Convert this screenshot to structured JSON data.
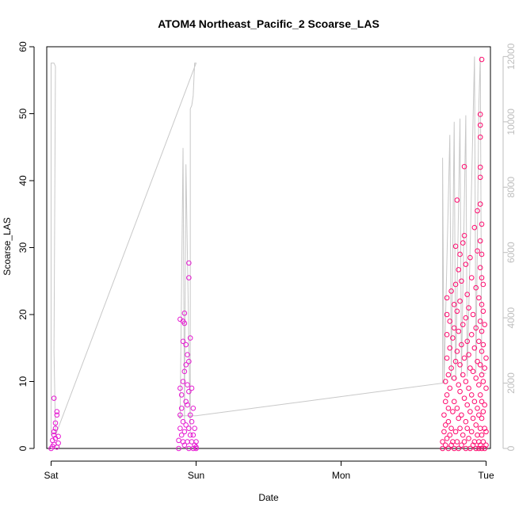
{
  "chart_data": {
    "type": "scatter",
    "title": "ATOM4 Northeast_Pacific_2 Scoarse_LAS",
    "xlabel": "Date",
    "ylabel": "Scoarse_LAS",
    "x_ticks": [
      "Sat",
      "Sun",
      "Mon",
      "Tue"
    ],
    "x_range_days": [
      -0.03,
      3.03
    ],
    "ylim": [
      0,
      60
    ],
    "y_ticks": [
      0,
      10,
      20,
      30,
      40,
      50,
      60
    ],
    "y2lim": [
      0,
      12300
    ],
    "y2_ticks": [
      0,
      2000,
      4000,
      6000,
      8000,
      10000,
      12000
    ],
    "grid": false,
    "colors": {
      "early_points": "#e619d2",
      "late_points": "#ff0a6e",
      "secondary_line": "#c8c8c8",
      "right_axis": "#bdbdbd"
    },
    "series": [
      {
        "type": "scatter",
        "points": [
          [
            0.0,
            0
          ],
          [
            0.01,
            0.3
          ],
          [
            0.01,
            1.2
          ],
          [
            0.02,
            0.6
          ],
          [
            0.02,
            2.0
          ],
          [
            0.02,
            2.5
          ],
          [
            0.03,
            1.5
          ],
          [
            0.03,
            3.0
          ],
          [
            0.03,
            3.8
          ],
          [
            0.04,
            0.2
          ],
          [
            0.04,
            5.0
          ],
          [
            0.04,
            5.5
          ],
          [
            0.02,
            7.5
          ],
          [
            0.05,
            0.8
          ],
          [
            0.05,
            1.8
          ],
          [
            0.88,
            0
          ],
          [
            0.88,
            1.2
          ],
          [
            0.89,
            3
          ],
          [
            0.89,
            5
          ],
          [
            0.89,
            9
          ],
          [
            0.89,
            19.3
          ],
          [
            0.9,
            2
          ],
          [
            0.9,
            6
          ],
          [
            0.9,
            8
          ],
          [
            0.91,
            1
          ],
          [
            0.91,
            4
          ],
          [
            0.91,
            10
          ],
          [
            0.91,
            16
          ],
          [
            0.91,
            19
          ],
          [
            0.92,
            0.5
          ],
          [
            0.92,
            2.5
          ],
          [
            0.92,
            11.5
          ],
          [
            0.92,
            18.7
          ],
          [
            0.92,
            20.2
          ],
          [
            0.93,
            3.5
          ],
          [
            0.93,
            7
          ],
          [
            0.93,
            12.5
          ],
          [
            0.93,
            15.5
          ],
          [
            0.94,
            1
          ],
          [
            0.94,
            6.5
          ],
          [
            0.94,
            9.5
          ],
          [
            0.94,
            14
          ],
          [
            0.95,
            0
          ],
          [
            0.95,
            3
          ],
          [
            0.95,
            8.5
          ],
          [
            0.95,
            13
          ],
          [
            0.95,
            25.5
          ],
          [
            0.95,
            27.7
          ],
          [
            0.96,
            2
          ],
          [
            0.96,
            5
          ],
          [
            0.96,
            16.5
          ],
          [
            0.97,
            1
          ],
          [
            0.97,
            4
          ],
          [
            0.97,
            9
          ],
          [
            0.98,
            0
          ],
          [
            0.98,
            2
          ],
          [
            0.98,
            6
          ],
          [
            0.99,
            0.5
          ],
          [
            0.99,
            3
          ],
          [
            1.0,
            0
          ],
          [
            1.0,
            1
          ],
          [
            1.0,
            0.2
          ],
          [
            2.7,
            0
          ],
          [
            2.7,
            1
          ],
          [
            2.71,
            2.5
          ],
          [
            2.71,
            5
          ],
          [
            2.72,
            0.5
          ],
          [
            2.72,
            3.5
          ],
          [
            2.72,
            7
          ],
          [
            2.72,
            10
          ],
          [
            2.73,
            1.5
          ],
          [
            2.73,
            8
          ],
          [
            2.73,
            13.5
          ],
          [
            2.73,
            17
          ],
          [
            2.73,
            20
          ],
          [
            2.73,
            22.5
          ],
          [
            2.74,
            0
          ],
          [
            2.74,
            4
          ],
          [
            2.74,
            6
          ],
          [
            2.74,
            11
          ],
          [
            2.75,
            2
          ],
          [
            2.75,
            9
          ],
          [
            2.75,
            15
          ],
          [
            2.75,
            19
          ],
          [
            2.76,
            0.5
          ],
          [
            2.76,
            3
          ],
          [
            2.76,
            12
          ],
          [
            2.76,
            23.5
          ],
          [
            2.77,
            1
          ],
          [
            2.77,
            5.5
          ],
          [
            2.77,
            16.5
          ],
          [
            2.78,
            0
          ],
          [
            2.78,
            7
          ],
          [
            2.78,
            10.5
          ],
          [
            2.78,
            18
          ],
          [
            2.78,
            21.5
          ],
          [
            2.79,
            2.5
          ],
          [
            2.79,
            13
          ],
          [
            2.79,
            24.5
          ],
          [
            2.79,
            30.2
          ],
          [
            2.8,
            1
          ],
          [
            2.8,
            6
          ],
          [
            2.8,
            14.5
          ],
          [
            2.8,
            20.5
          ],
          [
            2.8,
            37.1
          ],
          [
            2.81,
            0
          ],
          [
            2.81,
            4.5
          ],
          [
            2.81,
            9.5
          ],
          [
            2.81,
            17.5
          ],
          [
            2.81,
            26.7
          ],
          [
            2.82,
            3
          ],
          [
            2.82,
            8.5
          ],
          [
            2.82,
            12.5
          ],
          [
            2.82,
            22
          ],
          [
            2.82,
            29
          ],
          [
            2.83,
            0.5
          ],
          [
            2.83,
            5
          ],
          [
            2.83,
            15.5
          ],
          [
            2.83,
            25
          ],
          [
            2.84,
            2
          ],
          [
            2.84,
            11
          ],
          [
            2.84,
            18.5
          ],
          [
            2.84,
            30.7
          ],
          [
            2.85,
            1
          ],
          [
            2.85,
            7.5
          ],
          [
            2.85,
            13.5
          ],
          [
            2.85,
            42.1
          ],
          [
            2.85,
            31.8
          ],
          [
            2.86,
            0
          ],
          [
            2.86,
            4
          ],
          [
            2.86,
            10
          ],
          [
            2.86,
            19.5
          ],
          [
            2.86,
            27.5
          ],
          [
            2.87,
            3
          ],
          [
            2.87,
            6.5
          ],
          [
            2.87,
            16
          ],
          [
            2.87,
            23
          ],
          [
            2.88,
            1.5
          ],
          [
            2.88,
            9
          ],
          [
            2.88,
            14
          ],
          [
            2.88,
            21
          ],
          [
            2.89,
            0
          ],
          [
            2.89,
            5.5
          ],
          [
            2.89,
            12
          ],
          [
            2.89,
            28.5
          ],
          [
            2.9,
            2.5
          ],
          [
            2.9,
            8
          ],
          [
            2.9,
            17
          ],
          [
            2.9,
            25.5
          ],
          [
            2.91,
            0.5
          ],
          [
            2.91,
            4.5
          ],
          [
            2.91,
            11.5
          ],
          [
            2.91,
            20
          ],
          [
            2.92,
            1
          ],
          [
            2.92,
            7
          ],
          [
            2.92,
            15
          ],
          [
            2.92,
            33
          ],
          [
            2.93,
            0
          ],
          [
            2.93,
            3.5
          ],
          [
            2.93,
            10.5
          ],
          [
            2.93,
            18
          ],
          [
            2.93,
            24
          ],
          [
            2.94,
            2
          ],
          [
            2.94,
            6
          ],
          [
            2.94,
            13
          ],
          [
            2.94,
            29.5
          ],
          [
            2.94,
            35.5
          ],
          [
            2.95,
            0
          ],
          [
            2.95,
            1
          ],
          [
            2.95,
            5
          ],
          [
            2.95,
            9.5
          ],
          [
            2.95,
            16
          ],
          [
            2.95,
            22.5
          ],
          [
            2.96,
            0.5
          ],
          [
            2.96,
            3
          ],
          [
            2.96,
            8
          ],
          [
            2.96,
            12.5
          ],
          [
            2.96,
            19
          ],
          [
            2.96,
            27
          ],
          [
            2.96,
            31
          ],
          [
            2.96,
            36.5
          ],
          [
            2.96,
            40.5
          ],
          [
            2.96,
            42
          ],
          [
            2.96,
            46.5
          ],
          [
            2.96,
            49.9
          ],
          [
            2.96,
            48.3
          ],
          [
            2.97,
            58.1
          ],
          [
            2.97,
            0
          ],
          [
            2.97,
            2
          ],
          [
            2.97,
            4.5
          ],
          [
            2.97,
            7
          ],
          [
            2.97,
            11
          ],
          [
            2.97,
            14.5
          ],
          [
            2.97,
            17.5
          ],
          [
            2.97,
            21.5
          ],
          [
            2.97,
            25.5
          ],
          [
            2.97,
            29
          ],
          [
            2.97,
            33.5
          ],
          [
            2.98,
            1
          ],
          [
            2.98,
            5.5
          ],
          [
            2.98,
            10
          ],
          [
            2.98,
            15.5
          ],
          [
            2.98,
            20.5
          ],
          [
            2.98,
            24.5
          ],
          [
            2.99,
            0
          ],
          [
            2.99,
            3
          ],
          [
            2.99,
            6.5
          ],
          [
            2.99,
            12
          ],
          [
            2.99,
            18.5
          ],
          [
            3.0,
            0.5
          ],
          [
            3.0,
            2.5
          ],
          [
            3.0,
            9
          ],
          [
            3.0,
            13.5
          ]
        ]
      },
      {
        "type": "line",
        "axis": "right",
        "points": [
          [
            0.0,
            400
          ],
          [
            0.0,
            11800
          ],
          [
            0.02,
            11800
          ],
          [
            0.03,
            11700
          ],
          [
            0.02,
            3000
          ],
          [
            0.03,
            500
          ],
          [
            0.03,
            400
          ],
          [
            1.0,
            11800
          ],
          [
            0.99,
            11800
          ],
          [
            0.98,
            10800
          ],
          [
            0.97,
            10500
          ],
          [
            0.96,
            10400
          ],
          [
            0.96,
            500
          ],
          [
            0.93,
            8700
          ],
          [
            0.92,
            800
          ],
          [
            0.91,
            9200
          ],
          [
            0.89,
            900
          ],
          [
            0.88,
            1000
          ],
          [
            1.0,
            1000
          ],
          [
            2.7,
            2000
          ],
          [
            2.7,
            8900
          ],
          [
            2.71,
            2000
          ],
          [
            2.75,
            9600
          ],
          [
            2.76,
            2100
          ],
          [
            2.78,
            10000
          ],
          [
            2.79,
            2100
          ],
          [
            2.82,
            10100
          ],
          [
            2.83,
            2200
          ],
          [
            2.86,
            10200
          ],
          [
            2.87,
            2200
          ],
          [
            2.92,
            12000
          ],
          [
            2.93,
            2300
          ],
          [
            2.95,
            10500
          ],
          [
            2.96,
            12000
          ],
          [
            2.97,
            2300
          ],
          [
            3.0,
            2300
          ]
        ]
      }
    ]
  }
}
